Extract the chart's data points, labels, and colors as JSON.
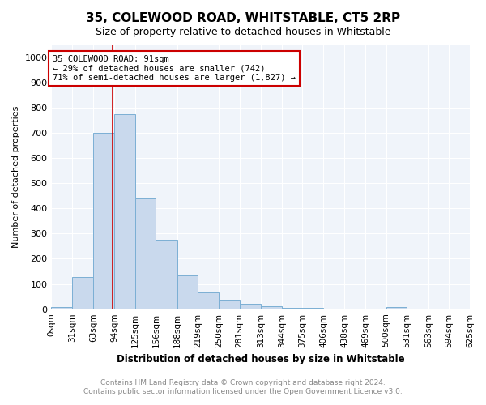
{
  "title": "35, COLEWOOD ROAD, WHITSTABLE, CT5 2RP",
  "subtitle": "Size of property relative to detached houses in Whitstable",
  "xlabel": "Distribution of detached houses by size in Whitstable",
  "ylabel": "Number of detached properties",
  "bar_color": "#c9d9ed",
  "bar_edge_color": "#7bafd4",
  "bg_color": "#f0f4fa",
  "grid_color": "#ffffff",
  "annotation_box_color": "#cc0000",
  "annotation_text": "35 COLEWOOD ROAD: 91sqm\n← 29% of detached houses are smaller (742)\n71% of semi-detached houses are larger (1,827) →",
  "vline_x": 91,
  "vline_color": "#cc0000",
  "categories": [
    "0sqm",
    "31sqm",
    "63sqm",
    "94sqm",
    "125sqm",
    "156sqm",
    "188sqm",
    "219sqm",
    "250sqm",
    "281sqm",
    "313sqm",
    "344sqm",
    "375sqm",
    "406sqm",
    "438sqm",
    "469sqm",
    "500sqm",
    "531sqm",
    "563sqm",
    "594sqm",
    "625sqm"
  ],
  "bin_edges": [
    0,
    31,
    63,
    94,
    125,
    156,
    188,
    219,
    250,
    281,
    313,
    344,
    375,
    406,
    438,
    469,
    500,
    531,
    563,
    594,
    625
  ],
  "values": [
    8,
    127,
    700,
    775,
    440,
    275,
    133,
    68,
    38,
    22,
    12,
    5,
    5,
    0,
    0,
    0,
    10,
    0,
    0,
    0
  ],
  "ylim": [
    0,
    1050
  ],
  "yticks": [
    0,
    100,
    200,
    300,
    400,
    500,
    600,
    700,
    800,
    900,
    1000
  ],
  "footer_line1": "Contains HM Land Registry data © Crown copyright and database right 2024.",
  "footer_line2": "Contains public sector information licensed under the Open Government Licence v3.0."
}
